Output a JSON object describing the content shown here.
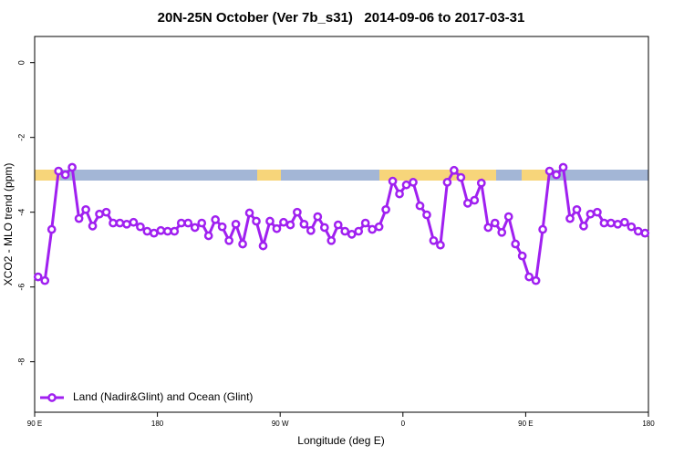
{
  "chart_data": {
    "type": "line",
    "title": "20N-25N October (Ver 7b_s31)   2014-09-06 to 2017-03-31",
    "x_label": "Longitude (deg E)",
    "y_label": "XCO2 - MLO trend (ppm)",
    "xlim": [
      90,
      540
    ],
    "xticks": [
      {
        "value": 90,
        "label": "90 E"
      },
      {
        "value": 180,
        "label": "180"
      },
      {
        "value": 270,
        "label": "90 W"
      },
      {
        "value": 360,
        "label": "0"
      },
      {
        "value": 450,
        "label": "90 E"
      },
      {
        "value": 540,
        "label": "180"
      }
    ],
    "ylim": [
      -9.35,
      0.7
    ],
    "yticks": [
      0,
      -2,
      -4,
      -6,
      -8
    ],
    "legend": "bottom-left",
    "x": [
      92.5,
      97.5,
      102.5,
      107.5,
      112.5,
      117.5,
      122.5,
      127.5,
      132.5,
      137.5,
      142.5,
      147.5,
      152.5,
      157.5,
      162.5,
      167.5,
      172.5,
      177.5,
      182.5,
      187.5,
      192.5,
      197.5,
      202.5,
      207.5,
      212.5,
      217.5,
      222.5,
      227.5,
      232.5,
      237.5,
      242.5,
      247.5,
      252.5,
      257.5,
      262.5,
      267.5,
      272.5,
      277.5,
      282.5,
      287.5,
      292.5,
      297.5,
      302.5,
      307.5,
      312.5,
      317.5,
      322.5,
      327.5,
      332.5,
      337.5,
      342.5,
      347.5,
      352.5,
      357.5,
      362.5,
      367.5,
      372.5,
      377.5,
      382.5,
      387.5,
      392.5,
      397.5,
      402.5,
      407.5,
      412.5,
      417.5,
      422.5,
      427.5,
      432.5,
      437.5,
      442.5,
      447.5,
      452.5,
      457.5,
      462.5,
      467.5,
      472.5,
      477.5,
      482.5,
      487.5,
      492.5,
      497.5,
      502.5,
      507.5,
      512.5,
      517.5,
      522.5,
      527.5,
      532.5,
      537.5
    ],
    "series": [
      {
        "name": "Land (Nadir&Glint) and Ocean (Glint)",
        "color": "#a020f0",
        "values": [
          -5.73,
          -5.83,
          -4.46,
          -2.9,
          -3.0,
          -2.8,
          -4.17,
          -3.93,
          -4.37,
          -4.05,
          -4.0,
          -4.29,
          -4.29,
          -4.32,
          -4.27,
          -4.39,
          -4.51,
          -4.56,
          -4.49,
          -4.51,
          -4.51,
          -4.29,
          -4.29,
          -4.41,
          -4.29,
          -4.63,
          -4.2,
          -4.39,
          -4.76,
          -4.32,
          -4.85,
          -4.02,
          -4.24,
          -4.9,
          -4.24,
          -4.44,
          -4.27,
          -4.34,
          -4.0,
          -4.32,
          -4.49,
          -4.12,
          -4.41,
          -4.76,
          -4.34,
          -4.51,
          -4.59,
          -4.51,
          -4.29,
          -4.46,
          -4.39,
          -3.93,
          -3.17,
          -3.51,
          -3.27,
          -3.2,
          -3.83,
          -4.07,
          -4.76,
          -4.88,
          -3.2,
          -2.88,
          -3.07,
          -3.76,
          -3.68,
          -3.22,
          -4.41,
          -4.29,
          -4.54,
          -4.12,
          -4.85,
          -5.17,
          -5.73,
          -5.83,
          -4.46,
          -2.9,
          -3.0,
          -2.8,
          -4.17,
          -3.93,
          -4.37,
          -4.05,
          -4.0,
          -4.29,
          -4.29,
          -4.32,
          -4.27,
          -4.39,
          -4.51,
          -4.56
        ]
      }
    ]
  }
}
